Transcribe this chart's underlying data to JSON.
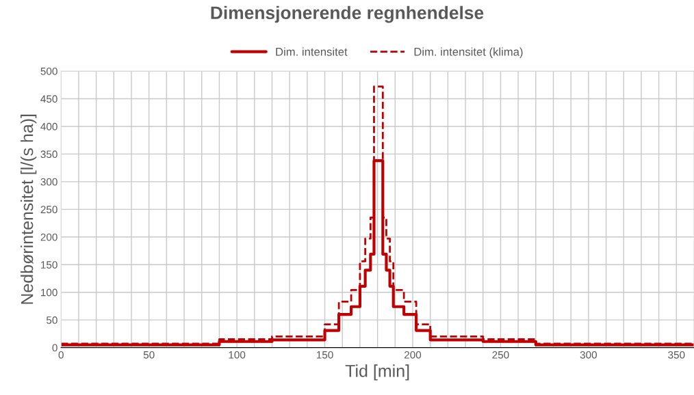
{
  "chart_data": {
    "type": "step",
    "title": "Dimensjonerende regnhendelse",
    "xlabel": "Tid [min]",
    "ylabel": "Nedbørintensitet [l/(s ha)]",
    "x": [
      0,
      90,
      120,
      150,
      158,
      165,
      170,
      173,
      176,
      178,
      183,
      185,
      187,
      189,
      195,
      202,
      210,
      240,
      270,
      360
    ],
    "series": [
      {
        "name": "Dim. intensitet",
        "color": "#c00000",
        "line_style": "solid",
        "values": [
          5,
          11,
          14,
          31,
          60,
          74,
          111,
          140,
          169,
          338,
          169,
          140,
          111,
          74,
          60,
          31,
          14,
          11,
          5,
          5
        ]
      },
      {
        "name": "Dim. intensitet (klima)",
        "color": "#c00000",
        "line_style": "dashed",
        "values": [
          7,
          15,
          20,
          42,
          83,
          104,
          156,
          197,
          235,
          472,
          235,
          197,
          156,
          104,
          83,
          42,
          20,
          15,
          7,
          7
        ]
      }
    ],
    "xlim": [
      0,
      360
    ],
    "ylim": [
      0,
      500
    ],
    "xticks": [
      0,
      {
        "value": 10,
        "label": null
      },
      {
        "value": 20,
        "label": null
      },
      {
        "value": 30,
        "label": null
      },
      {
        "value": 40,
        "label": null
      },
      50,
      {
        "value": 60,
        "label": null
      },
      {
        "value": 70,
        "label": null
      },
      {
        "value": 80,
        "label": null
      },
      {
        "value": 90,
        "label": null
      },
      100,
      {
        "value": 110,
        "label": null
      },
      {
        "value": 120,
        "label": null
      },
      {
        "value": 130,
        "label": null
      },
      {
        "value": 140,
        "label": null
      },
      150,
      {
        "value": 160,
        "label": null
      },
      {
        "value": 170,
        "label": null
      },
      {
        "value": 180,
        "label": null
      },
      {
        "value": 190,
        "label": null
      },
      200,
      {
        "value": 210,
        "label": null
      },
      {
        "value": 220,
        "label": null
      },
      {
        "value": 230,
        "label": null
      },
      {
        "value": 240,
        "label": null
      },
      250,
      {
        "value": 260,
        "label": null
      },
      {
        "value": 270,
        "label": null
      },
      {
        "value": 280,
        "label": null
      },
      {
        "value": 290,
        "label": null
      },
      300,
      {
        "value": 310,
        "label": null
      },
      {
        "value": 320,
        "label": null
      },
      {
        "value": 330,
        "label": null
      },
      {
        "value": 340,
        "label": null
      },
      350
    ],
    "yticks": [
      0,
      50,
      100,
      150,
      200,
      250,
      300,
      350,
      400,
      450,
      500
    ],
    "grid": true,
    "legend": "top"
  }
}
